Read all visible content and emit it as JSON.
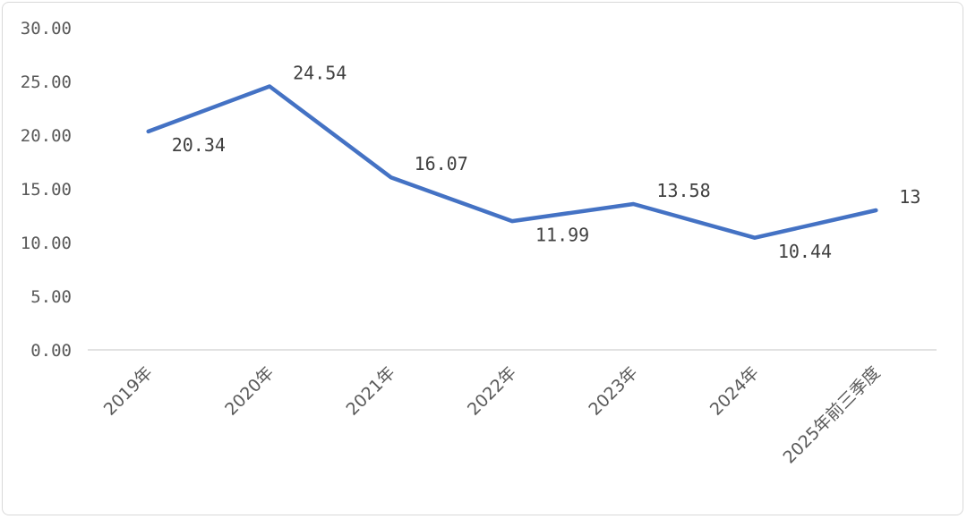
{
  "chart_data": {
    "type": "line",
    "categories": [
      "2019年",
      "2020年",
      "2021年",
      "2022年",
      "2023年",
      "2024年",
      "2025年前三季度"
    ],
    "series": [
      {
        "values": [
          20.34,
          24.54,
          16.07,
          11.99,
          13.58,
          10.44,
          13
        ],
        "labels": [
          "20.34",
          "24.54",
          "16.07",
          "11.99",
          "13.58",
          "10.44",
          "13"
        ],
        "color": "#4472c4"
      }
    ],
    "yticks": [
      "0.00",
      "5.00",
      "10.00",
      "15.00",
      "20.00",
      "25.00",
      "30.00"
    ],
    "ylim": [
      0,
      30
    ],
    "grid": false,
    "legend": "none",
    "title": "",
    "xlabel": "",
    "ylabel": ""
  }
}
